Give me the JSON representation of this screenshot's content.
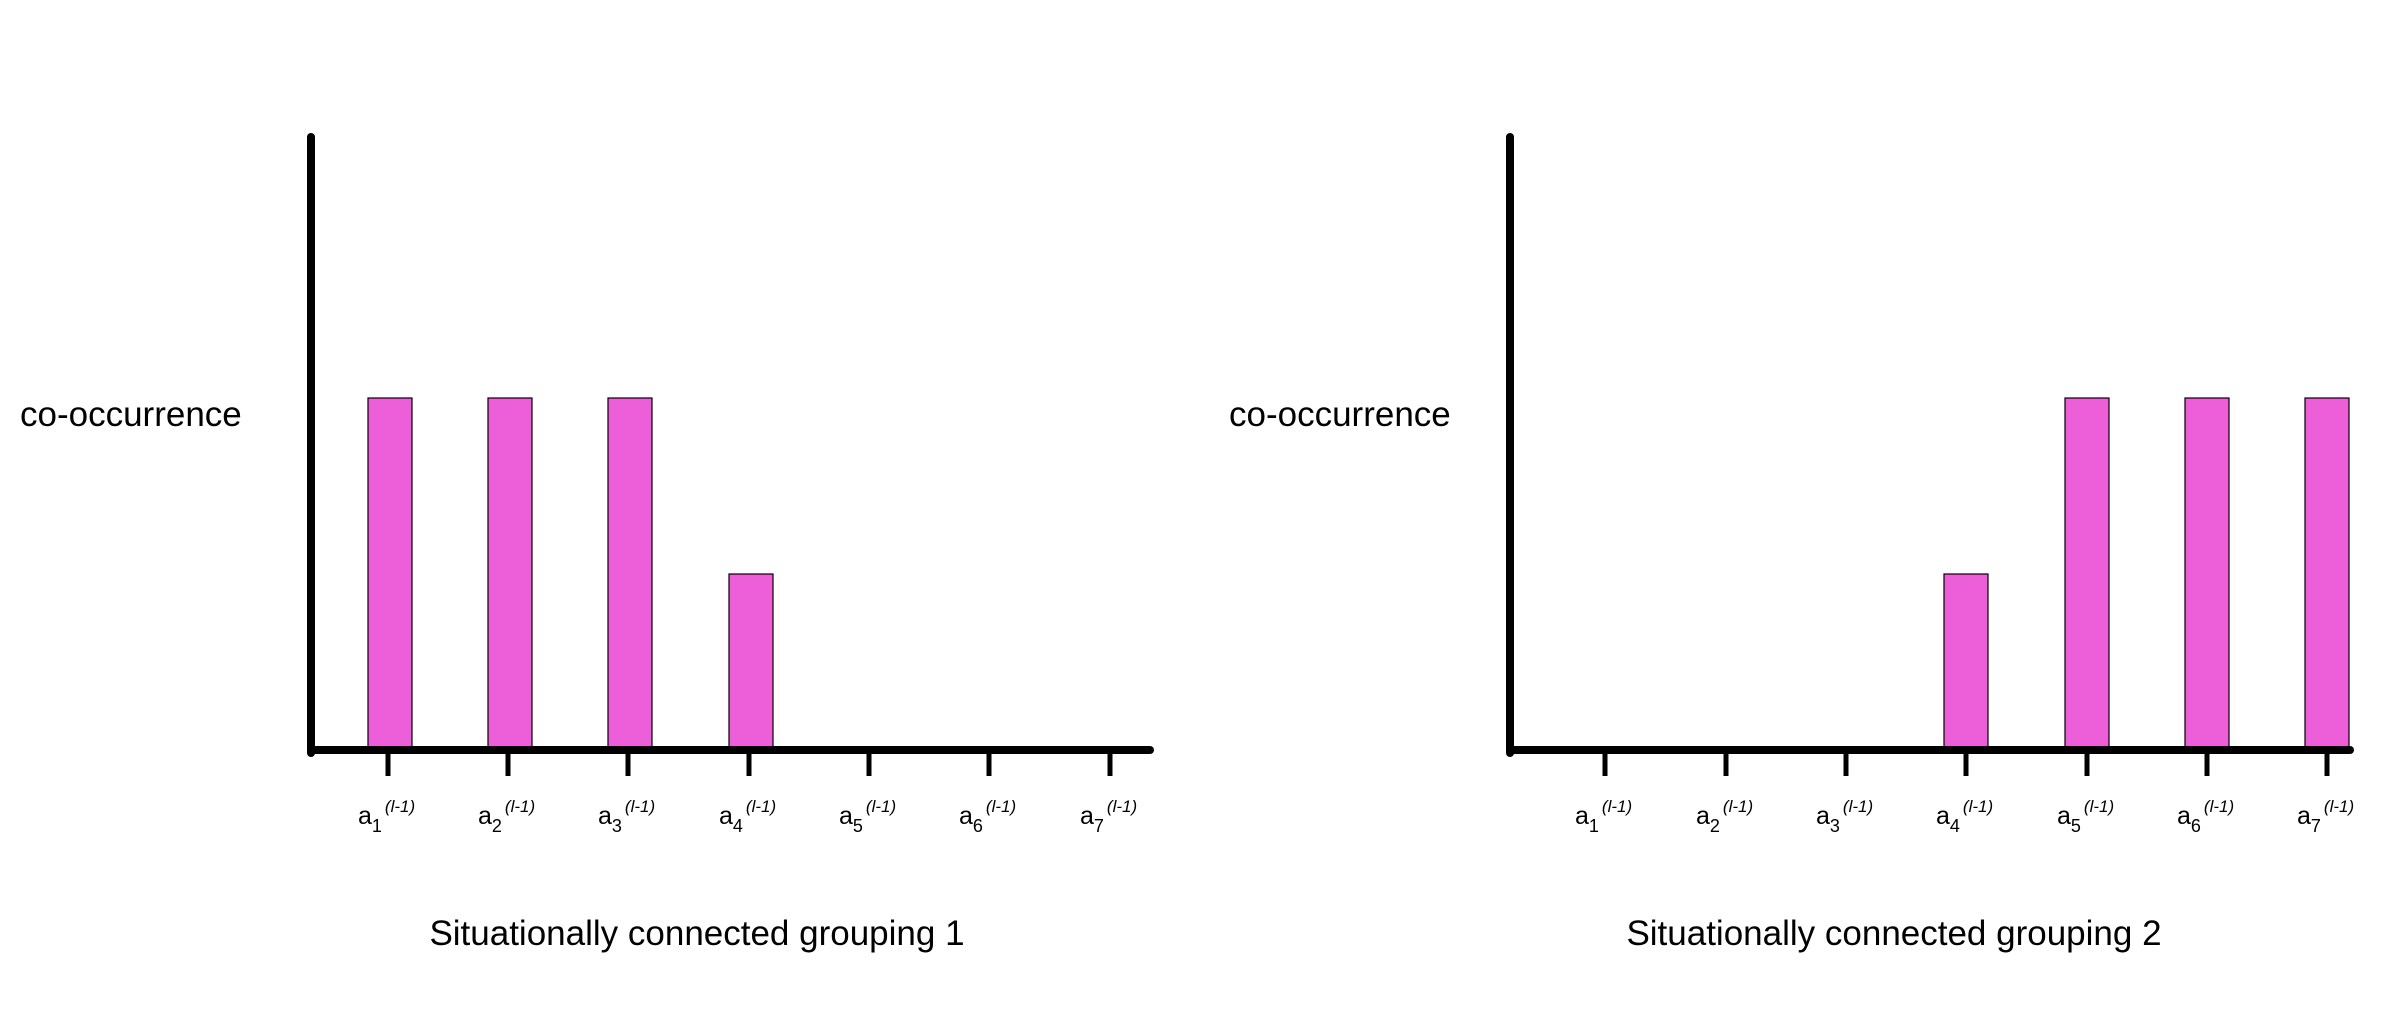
{
  "chart_data": [
    {
      "type": "bar",
      "ylabel": "co-occurrence",
      "xlabel": "Situationally connected grouping 1",
      "categories": [
        {
          "base": "a",
          "sub": "1",
          "sup": "(l-1)"
        },
        {
          "base": "a",
          "sub": "2",
          "sup": "(l-1)"
        },
        {
          "base": "a",
          "sub": "3",
          "sup": "(l-1)"
        },
        {
          "base": "a",
          "sub": "4",
          "sup": "(l-1)"
        },
        {
          "base": "a",
          "sub": "5",
          "sup": "(l-1)"
        },
        {
          "base": "a",
          "sub": "6",
          "sup": "(l-1)"
        },
        {
          "base": "a",
          "sub": "7",
          "sup": "(l-1)"
        }
      ],
      "values": [
        2,
        2,
        2,
        1,
        0,
        0,
        0
      ],
      "ylim": [
        0,
        3.5
      ],
      "bar_color": "#ec5fd9",
      "grid": false
    },
    {
      "type": "bar",
      "ylabel": "co-occurrence",
      "xlabel": "Situationally connected grouping 2",
      "categories": [
        {
          "base": "a",
          "sub": "1",
          "sup": "(l-1)"
        },
        {
          "base": "a",
          "sub": "2",
          "sup": "(l-1)"
        },
        {
          "base": "a",
          "sub": "3",
          "sup": "(l-1)"
        },
        {
          "base": "a",
          "sub": "4",
          "sup": "(l-1)"
        },
        {
          "base": "a",
          "sub": "5",
          "sup": "(l-1)"
        },
        {
          "base": "a",
          "sub": "6",
          "sup": "(l-1)"
        },
        {
          "base": "a",
          "sub": "7",
          "sup": "(l-1)"
        }
      ],
      "values": [
        0,
        0,
        0,
        1,
        2,
        2,
        2
      ],
      "ylim": [
        0,
        3.5
      ],
      "bar_color": "#ec5fd9",
      "grid": false
    }
  ]
}
